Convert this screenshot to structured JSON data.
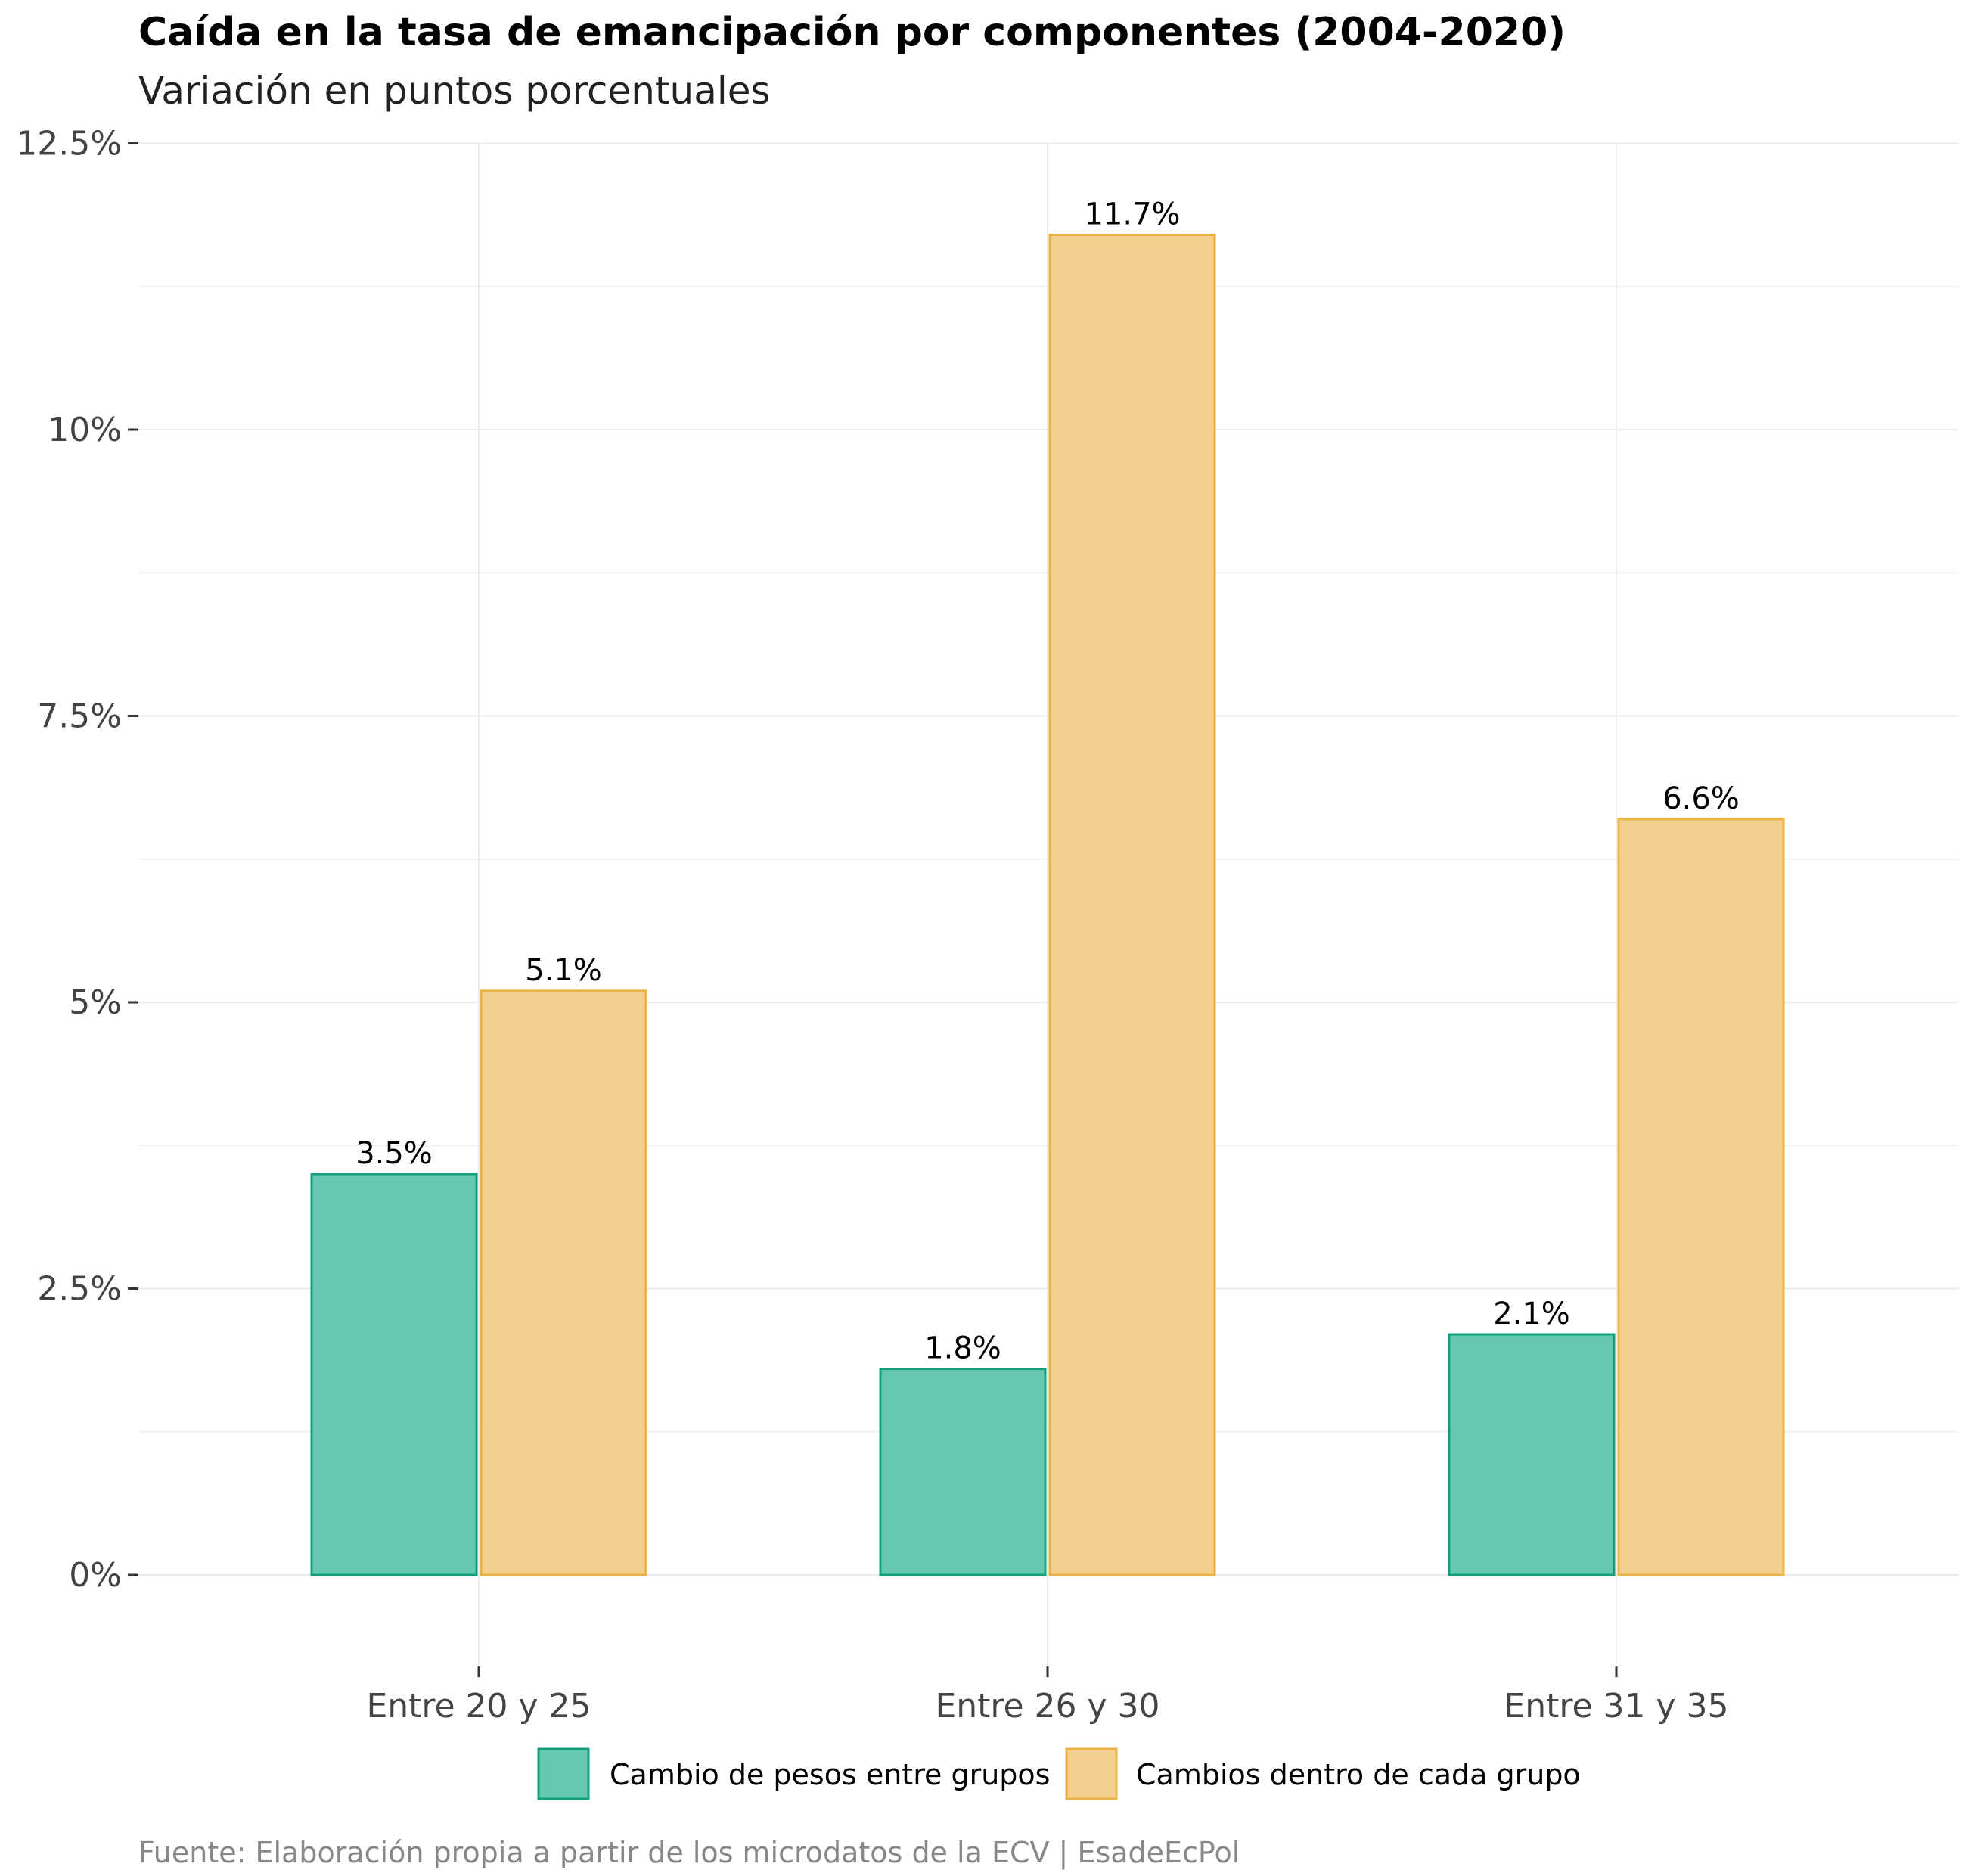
{
  "chart_data": {
    "type": "bar",
    "title": "Caída en la tasa de emancipación por componentes (2004-2020)",
    "subtitle": "Variación en puntos porcentuales",
    "caption": "Fuente: Elaboración propia a partir de los microdatos de la ECV | EsadeEcPol",
    "categories": [
      "Entre 20 y 25",
      "Entre 26 y 30",
      "Entre 31 y 35"
    ],
    "series": [
      {
        "name": "Cambio de pesos entre grupos",
        "values": [
          3.5,
          1.8,
          2.1
        ],
        "labels": [
          "3.5%",
          "1.8%",
          "2.1%"
        ],
        "fill": "#66c8b0",
        "stroke": "#12a07c"
      },
      {
        "name": "Cambios dentro de cada grupo",
        "values": [
          5.1,
          11.7,
          6.6
        ],
        "labels": [
          "5.1%",
          "11.7%",
          "6.6%"
        ],
        "fill": "#f2d08d",
        "stroke": "#ebb346"
      }
    ],
    "yticks": [
      0,
      2.5,
      5,
      7.5,
      10,
      12.5
    ],
    "ytick_labels": [
      "0%",
      "2.5%",
      "5%",
      "7.5%",
      "10%",
      "12.5%"
    ],
    "ylim": [
      -0.8,
      12.5
    ],
    "xlabel": "",
    "ylabel": "",
    "grid": true,
    "legend_position": "bottom"
  }
}
